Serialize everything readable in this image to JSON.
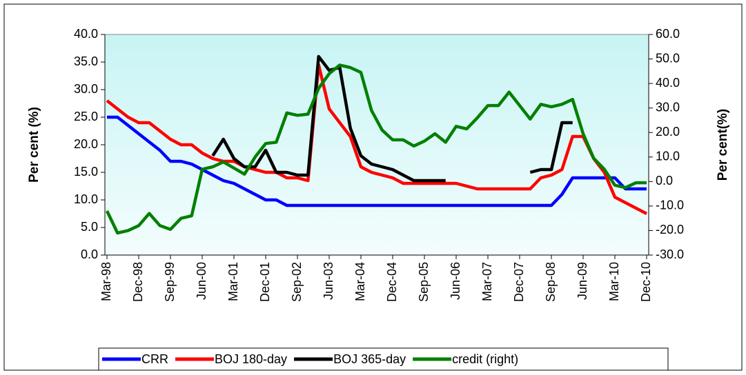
{
  "chart_data": {
    "type": "line",
    "y_label": "Per cent (%)",
    "y2_label": "Per cent(%)",
    "categories": [
      "Mar-98",
      null,
      null,
      "Dec-98",
      null,
      null,
      "Sep-99",
      null,
      null,
      "Jun-00",
      null,
      null,
      "Mar-01",
      null,
      null,
      "Dec-01",
      null,
      null,
      "Sep-02",
      null,
      null,
      "Jun-03",
      null,
      null,
      "Mar-04",
      null,
      null,
      "Dec-04",
      null,
      null,
      "Sep-05",
      null,
      null,
      "Jun-06",
      null,
      null,
      "Mar-07",
      null,
      null,
      "Dec-07",
      null,
      null,
      "Sep-08",
      null,
      null,
      "Jun-09",
      null,
      null,
      "Mar-10",
      null,
      null,
      "Dec-10"
    ],
    "series": [
      {
        "name": "CRR",
        "color": "#0000ff",
        "values": [
          25,
          25,
          23.5,
          22,
          20.5,
          19,
          17,
          17,
          16.5,
          15.5,
          14.5,
          13.5,
          13,
          12,
          11,
          10,
          10,
          9,
          9,
          9,
          9,
          9,
          9,
          9,
          9,
          9,
          9,
          9,
          9,
          9,
          9,
          9,
          9,
          9,
          9,
          9,
          9,
          9,
          9,
          9,
          9,
          9,
          9,
          11,
          14,
          14,
          14,
          14,
          14,
          12,
          12,
          12
        ]
      },
      {
        "name": "BOJ 180-day",
        "color": "#ff0000",
        "values": [
          28,
          26.5,
          25,
          24,
          24,
          22.5,
          21,
          20,
          20,
          18.5,
          17.5,
          17,
          17,
          16,
          15.5,
          15,
          15,
          14,
          14,
          13.5,
          34.5,
          26.5,
          24,
          21.5,
          16,
          15,
          14.5,
          14,
          13,
          13,
          13,
          13,
          13,
          13,
          12.5,
          12,
          12,
          12,
          12,
          12,
          12,
          14,
          14.5,
          15.5,
          21.5,
          21.5,
          17.5,
          15,
          10.5,
          9.5,
          8.5,
          7.5
        ]
      },
      {
        "name": "BOJ 365-day",
        "color": "#000000",
        "values": [
          null,
          null,
          null,
          null,
          null,
          null,
          null,
          null,
          null,
          null,
          18,
          21,
          17.5,
          16,
          16,
          19,
          15,
          15,
          14.5,
          14.5,
          36,
          33.5,
          34,
          23,
          18,
          16.5,
          16,
          15.5,
          14.5,
          13.5,
          13.5,
          13.5,
          13.5,
          null,
          null,
          null,
          null,
          null,
          null,
          null,
          15,
          15.5,
          15.5,
          24,
          24,
          null,
          null,
          null,
          null,
          null,
          null,
          null
        ]
      },
      {
        "name": "credit (right)",
        "color": "#008000",
        "axis": "y2",
        "values": [
          -12,
          -21,
          -20,
          -18,
          -13,
          -18,
          -19.5,
          -15,
          -14,
          5,
          6,
          8,
          5.5,
          3,
          10,
          15.5,
          16,
          28,
          27,
          27.5,
          38,
          44,
          47.5,
          46.5,
          44.5,
          29,
          21,
          17,
          17,
          14.5,
          16.5,
          19.5,
          16,
          22.5,
          21.5,
          26,
          31,
          31,
          36.5,
          31,
          25.5,
          31.5,
          30.5,
          31.5,
          33.5,
          19.5,
          9.5,
          5,
          -1.5,
          -2.5,
          -0.5,
          -0.5
        ]
      }
    ],
    "ylim": [
      0,
      40
    ],
    "yticks": [
      {
        "value": 0,
        "label": "0.0"
      },
      {
        "value": 5,
        "label": "5.0"
      },
      {
        "value": 10,
        "label": "10.0"
      },
      {
        "value": 15,
        "label": "15.0"
      },
      {
        "value": 20,
        "label": "20.0"
      },
      {
        "value": 25,
        "label": "25.0"
      },
      {
        "value": 30,
        "label": "30.0"
      },
      {
        "value": 35,
        "label": "35.0"
      },
      {
        "value": 40,
        "label": "40.0"
      }
    ],
    "y2lim": [
      -30,
      60
    ],
    "y2ticks": [
      {
        "value": -30,
        "label": "-30.0"
      },
      {
        "value": -20,
        "label": "-20.0"
      },
      {
        "value": -10,
        "label": "-10.0"
      },
      {
        "value": 0,
        "label": "0.0"
      },
      {
        "value": 10,
        "label": "10.0"
      },
      {
        "value": 20,
        "label": "20.0"
      },
      {
        "value": 30,
        "label": "30.0"
      },
      {
        "value": 40,
        "label": "40.0"
      },
      {
        "value": 50,
        "label": "50.0"
      },
      {
        "value": 60,
        "label": "60.0"
      }
    ],
    "legend": "bottom"
  }
}
